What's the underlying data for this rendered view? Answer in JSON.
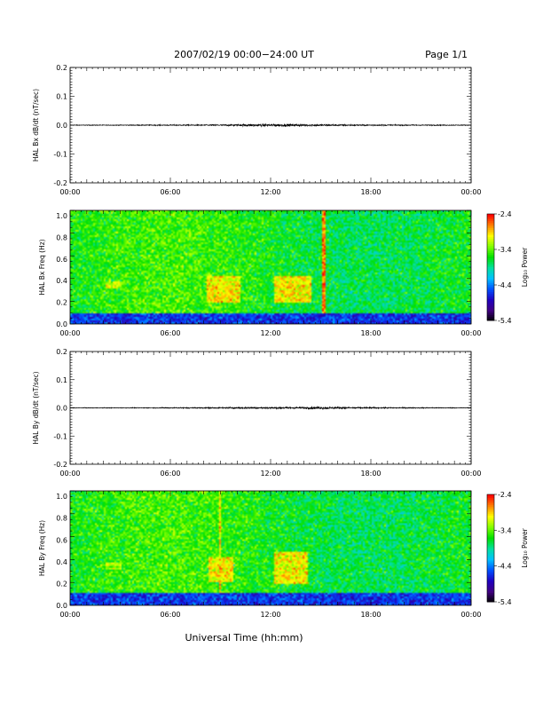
{
  "header": {
    "title": "2007/02/19  00:00−24:00 UT",
    "page": "Page 1/1"
  },
  "xlabel": "Universal Time (hh:mm)",
  "colorbar": {
    "label": "Log₁₀ Power",
    "ticks": [
      "-2.4",
      "-3.4",
      "-4.4",
      "-5.4"
    ],
    "colors": [
      "#ff0000",
      "#ff8000",
      "#ffff00",
      "#80ff00",
      "#00e000",
      "#00e0a0",
      "#00c0ff",
      "#0050ff",
      "#2000c0",
      "#400080",
      "#000000"
    ]
  },
  "chart_data": [
    {
      "type": "line",
      "ylabel": "HAL Bx dB/dt (nT/sec)",
      "ylim": [
        -0.2,
        0.2
      ],
      "y_ticks": [
        "0.2",
        "0.1",
        "0.0",
        "-0.1",
        "-0.2"
      ],
      "x_ticks": [
        "00:00",
        "06:00",
        "12:00",
        "18:00",
        "00:00"
      ],
      "x_range_hours": [
        0,
        24
      ],
      "series": [
        {
          "x_hours": [
            0,
            3,
            6,
            9,
            10,
            11,
            12,
            13,
            14,
            15,
            16,
            18,
            21,
            24
          ],
          "amplitude": [
            0.001,
            0.001,
            0.0015,
            0.002,
            0.003,
            0.004,
            0.004,
            0.004,
            0.003,
            0.003,
            0.0025,
            0.002,
            0.0015,
            0.001
          ]
        }
      ]
    },
    {
      "type": "heatmap",
      "ylabel": "HAL Bx Freq (Hz)",
      "ylim": [
        0,
        1.05
      ],
      "y_ticks": [
        "1.0",
        "0.8",
        "0.6",
        "0.4",
        "0.2",
        "0.0"
      ],
      "x_ticks": [
        "00:00",
        "06:00",
        "12:00",
        "18:00",
        "00:00"
      ],
      "x_range_hours": [
        0,
        24
      ],
      "zlim": [
        -5.4,
        -2.4
      ],
      "background_log_power": -3.6,
      "features": [
        {
          "t_hours": [
            8.2,
            10.2
          ],
          "f_hz": [
            0.2,
            0.45
          ],
          "log_power": -2.9
        },
        {
          "t_hours": [
            12.2,
            14.4
          ],
          "f_hz": [
            0.2,
            0.45
          ],
          "log_power": -2.9
        },
        {
          "t_hours": [
            2.1,
            3.1
          ],
          "f_hz": [
            0.32,
            0.4
          ],
          "log_power": -3.1
        },
        {
          "t_hours": [
            15.1,
            15.25
          ],
          "f_hz": [
            0.0,
            1.05
          ],
          "log_power": -2.5
        },
        {
          "t_hours": [
            0.0,
            24.0
          ],
          "f_hz": [
            0.0,
            0.1
          ],
          "log_power": -4.6
        }
      ]
    },
    {
      "type": "line",
      "ylabel": "HAL By dB/dt (nT/sec)",
      "ylim": [
        -0.2,
        0.2
      ],
      "y_ticks": [
        "0.2",
        "0.1",
        "0.0",
        "-0.1",
        "-0.2"
      ],
      "x_ticks": [
        "00:00",
        "06:00",
        "12:00",
        "18:00",
        "00:00"
      ],
      "x_range_hours": [
        0,
        24
      ],
      "series": [
        {
          "x_hours": [
            0,
            3,
            6,
            9,
            10,
            11,
            12,
            13,
            14,
            15,
            16,
            18,
            21,
            24
          ],
          "amplitude": [
            0.001,
            0.001,
            0.0015,
            0.002,
            0.003,
            0.003,
            0.003,
            0.003,
            0.003,
            0.004,
            0.003,
            0.002,
            0.0015,
            0.001
          ]
        }
      ]
    },
    {
      "type": "heatmap",
      "ylabel": "HAL By Freq (Hz)",
      "ylim": [
        0,
        1.05
      ],
      "y_ticks": [
        "1.0",
        "0.8",
        "0.6",
        "0.4",
        "0.2",
        "0.0"
      ],
      "x_ticks": [
        "00:00",
        "06:00",
        "12:00",
        "18:00",
        "00:00"
      ],
      "x_range_hours": [
        0,
        24
      ],
      "zlim": [
        -5.4,
        -2.4
      ],
      "background_log_power": -3.6,
      "features": [
        {
          "t_hours": [
            8.3,
            9.8
          ],
          "f_hz": [
            0.22,
            0.45
          ],
          "log_power": -2.9
        },
        {
          "t_hours": [
            12.2,
            14.2
          ],
          "f_hz": [
            0.2,
            0.5
          ],
          "log_power": -2.9
        },
        {
          "t_hours": [
            2.1,
            3.1
          ],
          "f_hz": [
            0.32,
            0.4
          ],
          "log_power": -3.1
        },
        {
          "t_hours": [
            8.95,
            9.05
          ],
          "f_hz": [
            0.0,
            1.05
          ],
          "log_power": -2.8
        },
        {
          "t_hours": [
            0.0,
            24.0
          ],
          "f_hz": [
            0.0,
            0.12
          ],
          "log_power": -4.6
        }
      ]
    }
  ]
}
